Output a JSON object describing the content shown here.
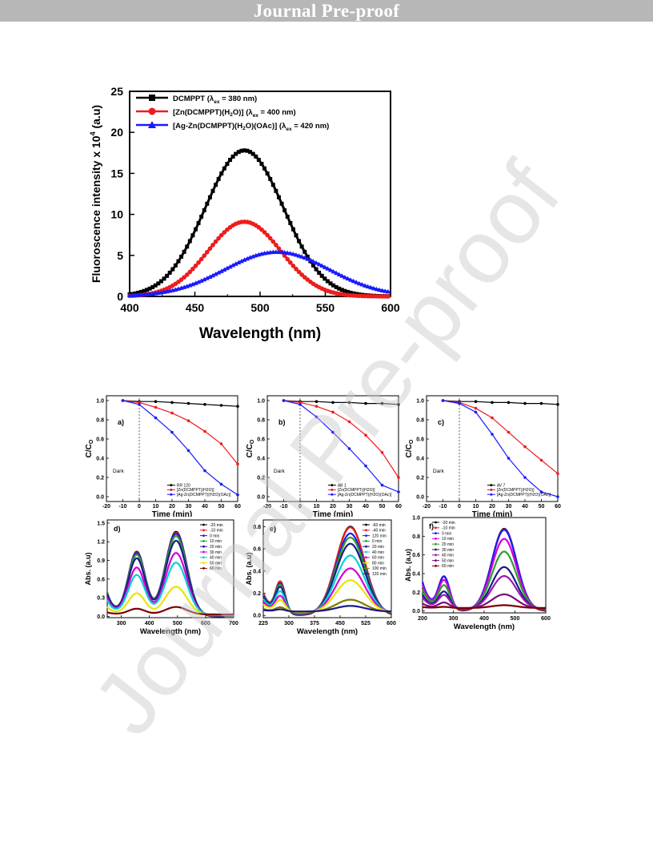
{
  "header": {
    "title": "Journal Pre-proof"
  },
  "watermark": "Journal Pre-proof",
  "chart_data": [
    {
      "type": "line",
      "xlabel": "Wavelength (nm)",
      "ylabel": "Fluoroscence intensity x 10",
      "ylabel_sup": "4",
      "ylabel_unit": " (a.u)",
      "xlim": [
        400,
        600
      ],
      "ylim": [
        0,
        25
      ],
      "xticks": [
        400,
        450,
        500,
        550,
        600
      ],
      "yticks": [
        0,
        5,
        10,
        15,
        20,
        25
      ],
      "legend_position": "top-left",
      "series": [
        {
          "name_parts": [
            "DCMPPT (",
            "λ",
            "ex",
            " = 380 nm)"
          ],
          "color": "#000000",
          "marker": "square",
          "center": 488,
          "sigma": 30,
          "peak": 17.8
        },
        {
          "name_parts": [
            "[Zn(DCMPPT)(H",
            "2",
            "O)] (",
            "λ",
            "ex",
            " = 400 nm)"
          ],
          "color": "#ee1c1c",
          "marker": "circle",
          "center": 488,
          "sigma": 28,
          "peak": 9.1
        },
        {
          "name_parts": [
            "[Ag-Zn(DCMPPT)(H",
            "2",
            "O)(OAc)] (",
            "λ",
            "ex",
            " = 420 nm)"
          ],
          "color": "#1a1aff",
          "marker": "triangle",
          "center": 513,
          "sigma": 40,
          "peak": 5.4
        }
      ]
    },
    {
      "type": "line",
      "panel": "a)",
      "xlabel": "Time (min)",
      "ylabel": "C/C",
      "ylabel_sub": "O",
      "annotation": "Dark",
      "xlim": [
        -20,
        60
      ],
      "ylim": [
        -0.05,
        1.05
      ],
      "xticks": [
        -20,
        -10,
        0,
        10,
        20,
        30,
        40,
        50,
        60
      ],
      "yticks": [
        0.0,
        0.2,
        0.4,
        0.6,
        0.8,
        1.0
      ],
      "x": [
        -10,
        0,
        10,
        20,
        30,
        40,
        50,
        60
      ],
      "series": [
        {
          "name": "RR 120",
          "color": "#000000",
          "values": [
            1.0,
            0.99,
            0.99,
            0.98,
            0.97,
            0.96,
            0.95,
            0.94
          ]
        },
        {
          "name": "[Zn(DCMPPT)(H2O)]",
          "color": "#ee1c1c",
          "values": [
            1.0,
            0.98,
            0.93,
            0.87,
            0.79,
            0.68,
            0.55,
            0.34
          ]
        },
        {
          "name": "[Ag-Zn(DCMPPT)(H2O)(OAc)]",
          "color": "#1a1aff",
          "values": [
            1.0,
            0.96,
            0.82,
            0.67,
            0.48,
            0.27,
            0.13,
            0.02
          ]
        }
      ]
    },
    {
      "type": "line",
      "panel": "b)",
      "xlabel": "Time (min)",
      "ylabel": "C/C",
      "ylabel_sub": "O",
      "annotation": "Dark",
      "xlim": [
        -20,
        60
      ],
      "ylim": [
        -0.05,
        1.05
      ],
      "xticks": [
        -20,
        -10,
        0,
        10,
        20,
        30,
        40,
        50,
        60
      ],
      "yticks": [
        0.0,
        0.2,
        0.4,
        0.6,
        0.8,
        1.0
      ],
      "x": [
        -10,
        0,
        10,
        20,
        30,
        40,
        50,
        60
      ],
      "series": [
        {
          "name": "AB 1",
          "color": "#000000",
          "values": [
            1.0,
            0.99,
            0.99,
            0.98,
            0.98,
            0.97,
            0.97,
            0.96
          ]
        },
        {
          "name": "[Zn(DCMPPT)(H2O)]",
          "color": "#ee1c1c",
          "values": [
            1.0,
            0.98,
            0.94,
            0.88,
            0.78,
            0.64,
            0.46,
            0.2
          ]
        },
        {
          "name": "[Ag-Zn(DCMPPT)(H2O)(OAc)]",
          "color": "#1a1aff",
          "values": [
            1.0,
            0.96,
            0.83,
            0.67,
            0.5,
            0.32,
            0.12,
            0.05
          ]
        }
      ]
    },
    {
      "type": "line",
      "panel": "c)",
      "xlabel": "Time (min)",
      "ylabel": "C/C",
      "ylabel_sub": "O",
      "annotation": "Dark",
      "xlim": [
        -20,
        60
      ],
      "ylim": [
        -0.05,
        1.05
      ],
      "xticks": [
        -20,
        -10,
        0,
        10,
        20,
        30,
        40,
        50,
        60
      ],
      "yticks": [
        0.0,
        0.2,
        0.4,
        0.6,
        0.8,
        1.0
      ],
      "x": [
        -10,
        0,
        10,
        20,
        30,
        40,
        50,
        60
      ],
      "series": [
        {
          "name": "AV 7",
          "color": "#000000",
          "values": [
            1.0,
            0.99,
            0.99,
            0.98,
            0.98,
            0.97,
            0.97,
            0.96
          ]
        },
        {
          "name": "[Zn(DCMPPT)(H2O)]",
          "color": "#ee1c1c",
          "values": [
            1.0,
            0.98,
            0.92,
            0.82,
            0.67,
            0.52,
            0.38,
            0.24
          ]
        },
        {
          "name": "[Ag-Zn(DCMPPT)(H2O)(OAc)]",
          "color": "#1a1aff",
          "values": [
            1.0,
            0.97,
            0.88,
            0.65,
            0.4,
            0.2,
            0.05,
            0.0
          ]
        }
      ]
    },
    {
      "type": "line",
      "panel": "d)",
      "xlabel": "Wavelength (nm)",
      "ylabel": "Abs. (a.u)",
      "xlim": [
        250,
        700
      ],
      "ylim": [
        -0.02,
        1.55
      ],
      "xticks": [
        300,
        400,
        500,
        600,
        700
      ],
      "yticks": [
        0.0,
        0.3,
        0.6,
        0.9,
        1.2,
        1.5
      ],
      "peaks": {
        "centers": [
          355,
          495
        ],
        "widths": [
          30,
          38
        ],
        "ratio": 0.76,
        "tail": 0.28
      },
      "series": [
        {
          "name": "-20 min",
          "color": "#000000",
          "peak": 1.36
        },
        {
          "name": "-10 min",
          "color": "#ee1c1c",
          "peak": 1.34
        },
        {
          "name": "0 min",
          "color": "#1a1aff",
          "peak": 1.32
        },
        {
          "name": "10 min",
          "color": "#2aa22a",
          "peak": 1.28
        },
        {
          "name": "20 min",
          "color": "#1a1a8a",
          "peak": 1.2
        },
        {
          "name": "30 min",
          "color": "#d400d4",
          "peak": 1.0
        },
        {
          "name": "40 min",
          "color": "#00d4d4",
          "peak": 0.84
        },
        {
          "name": "50 min",
          "color": "#e6e600",
          "peak": 0.45
        },
        {
          "name": "60 min",
          "color": "#7a0000",
          "peak": 0.12
        }
      ]
    },
    {
      "type": "line",
      "panel": "e)",
      "xlabel": "Wavelength (nm)",
      "ylabel": "Abs. (a.u)",
      "xlim": [
        225,
        600
      ],
      "ylim": [
        -0.02,
        0.86
      ],
      "xticks": [
        225,
        300,
        375,
        450,
        525,
        600
      ],
      "yticks": [
        0.0,
        0.2,
        0.4,
        0.6,
        0.8
      ],
      "peaks": {
        "centers": [
          275,
          480
        ],
        "widths": [
          14,
          42
        ],
        "ratio": 0.35,
        "tail": 0.25
      },
      "series": [
        {
          "name": "-60 min",
          "color": "#000000",
          "peak": 0.8
        },
        {
          "name": "-40 min",
          "color": "#ee1c1c",
          "peak": 0.79
        },
        {
          "name": "120 min",
          "color": "#1a1aff",
          "peak": 0.73
        },
        {
          "name": "0 min",
          "color": "#2aa22a",
          "peak": 0.69
        },
        {
          "name": "20 min",
          "color": "#1a1a8a",
          "peak": 0.63
        },
        {
          "name": "40 min",
          "color": "#00d4d4",
          "peak": 0.52
        },
        {
          "name": "60 min",
          "color": "#d400d4",
          "peak": 0.4
        },
        {
          "name": "80 min",
          "color": "#e6e600",
          "peak": 0.29
        },
        {
          "name": "100 min",
          "color": "#7a7a00",
          "peak": 0.11
        },
        {
          "name": "120 min",
          "color": "#1a1a8a",
          "peak": 0.05
        }
      ]
    },
    {
      "type": "line",
      "panel": "f)",
      "xlabel": "Wavelength (nm)",
      "ylabel": "Abs. (a.u)",
      "xlim": [
        200,
        600
      ],
      "ylim": [
        -0.02,
        1.0
      ],
      "xticks": [
        200,
        300,
        400,
        500,
        600
      ],
      "yticks": [
        0.0,
        0.2,
        0.4,
        0.6,
        0.8,
        1.0
      ],
      "peaks": {
        "centers": [
          270,
          465
        ],
        "widths": [
          18,
          40
        ],
        "ratio": 0.4,
        "tail": 0.35
      },
      "series": [
        {
          "name": "-20 min",
          "color": "#000000",
          "peak": 0.88
        },
        {
          "name": "-10 min",
          "color": "#ee1c1c",
          "peak": 0.87
        },
        {
          "name": "0 min",
          "color": "#1a1aff",
          "peak": 0.86
        },
        {
          "name": "10 min",
          "color": "#d400d4",
          "peak": 0.76
        },
        {
          "name": "20 min",
          "color": "#2aa22a",
          "peak": 0.62
        },
        {
          "name": "30 min",
          "color": "#1a1a8a",
          "peak": 0.45
        },
        {
          "name": "40 min",
          "color": "#9a1ab4",
          "peak": 0.35
        },
        {
          "name": "50 min",
          "color": "#7a0a7a",
          "peak": 0.15
        },
        {
          "name": "60 min",
          "color": "#7a0000",
          "peak": 0.03
        }
      ]
    }
  ]
}
